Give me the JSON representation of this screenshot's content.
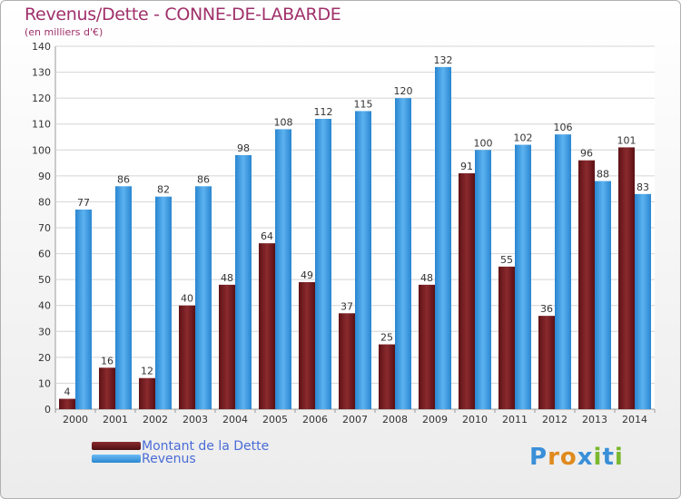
{
  "title": "Revenus/Dette - CONNE-DE-LABARDE",
  "subtitle": "(en milliers d'€)",
  "legend": {
    "dette": "Montant de la Dette",
    "revenus": "Revenus"
  },
  "logo": {
    "letters": [
      "P",
      "r",
      "o",
      "x",
      "i",
      "t",
      "i"
    ],
    "colors": [
      "#3a8fd8",
      "#e08a1e",
      "#e08a1e",
      "#3a8fd8",
      "#7ab82e",
      "#3a8fd8",
      "#7ab82e"
    ]
  },
  "colors": {
    "dette": "#7a1e22",
    "revenus": "#3d9ee6",
    "title": "#a0306a",
    "legend_text": "#4a6cd6"
  },
  "chart_data": {
    "type": "bar",
    "title": "Revenus/Dette - CONNE-DE-LABARDE",
    "subtitle": "(en milliers d'€)",
    "categories": [
      "2000",
      "2001",
      "2002",
      "2003",
      "2004",
      "2005",
      "2006",
      "2007",
      "2008",
      "2009",
      "2010",
      "2011",
      "2012",
      "2013",
      "2014"
    ],
    "series": [
      {
        "name": "Montant de la Dette",
        "values": [
          4,
          16,
          12,
          40,
          48,
          64,
          49,
          37,
          25,
          48,
          91,
          55,
          36,
          96,
          101
        ]
      },
      {
        "name": "Revenus",
        "values": [
          77,
          86,
          82,
          86,
          98,
          108,
          112,
          115,
          120,
          132,
          100,
          102,
          106,
          88,
          83
        ]
      }
    ],
    "ylim": [
      0,
      140
    ],
    "yticks": [
      0,
      10,
      20,
      30,
      40,
      50,
      60,
      70,
      80,
      90,
      100,
      110,
      120,
      130,
      140
    ],
    "grid": true,
    "legend_position": "bottom-left"
  }
}
